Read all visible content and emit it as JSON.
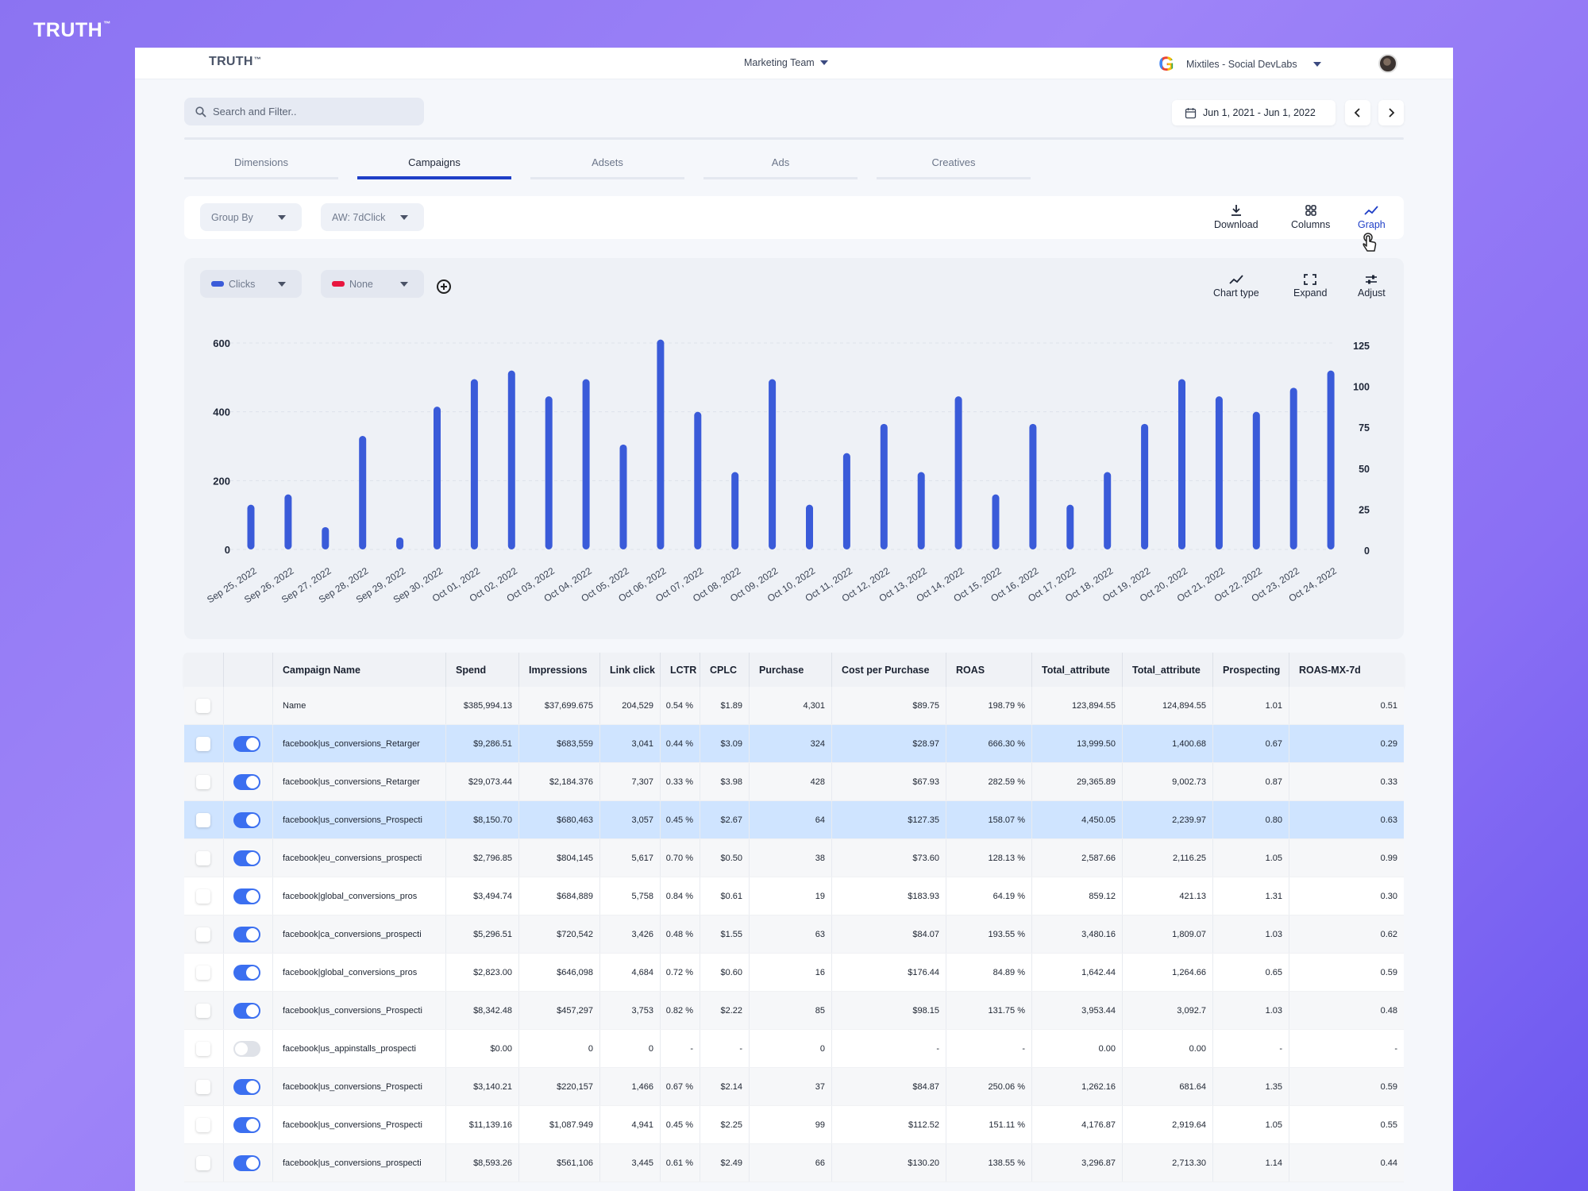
{
  "brand": {
    "name": "TRUTH",
    "tm": "™"
  },
  "header": {
    "team": "Marketing Team",
    "account": "Mixtiles - Social DevLabs"
  },
  "search": {
    "placeholder": "Search and Filter.."
  },
  "date_range": "Jun 1, 2021 - Jun 1, 2022",
  "tabs": [
    {
      "label": "Dimensions",
      "active": false
    },
    {
      "label": "Campaigns",
      "active": true
    },
    {
      "label": "Adsets",
      "active": false
    },
    {
      "label": "Ads",
      "active": false
    },
    {
      "label": "Creatives",
      "active": false
    }
  ],
  "toolbar": {
    "group_by": "Group By",
    "attribution": "AW: 7dClick",
    "download": "Download",
    "columns": "Columns",
    "graph": "Graph"
  },
  "chart_controls": {
    "metric1": "Clicks",
    "metric1_color": "#3a5bd9",
    "metric2": "None",
    "metric2_color": "#e8163f",
    "chart_type": "Chart type",
    "expand": "Expand",
    "adjust": "Adjust"
  },
  "chart_data": {
    "type": "bar",
    "title": "",
    "categories": [
      "Sep 25, 2022",
      "Sep 26, 2022",
      "Sep 27, 2022",
      "Sep 28, 2022",
      "Sep 29, 2022",
      "Sep 30, 2022",
      "Oct 01, 2022",
      "Oct 02, 2022",
      "Oct 03, 2022",
      "Oct 04, 2022",
      "Oct 05, 2022",
      "Oct 06, 2022",
      "Oct 07, 2022",
      "Oct 08, 2022",
      "Oct 09, 2022",
      "Oct 10, 2022",
      "Oct 11, 2022",
      "Oct 12, 2022",
      "Oct 13, 2022",
      "Oct 14, 2022",
      "Oct 15, 2022",
      "Oct 16, 2022",
      "Oct 17, 2022",
      "Oct 18, 2022",
      "Oct 19, 2022",
      "Oct 20, 2022",
      "Oct 21, 2022",
      "Oct 22, 2022",
      "Oct 23, 2022",
      "Oct 24, 2022"
    ],
    "series": [
      {
        "name": "Clicks",
        "values": [
          130,
          160,
          65,
          330,
          35,
          415,
          495,
          520,
          445,
          495,
          305,
          610,
          400,
          225,
          495,
          130,
          280,
          365,
          225,
          445,
          160,
          365,
          130,
          225,
          365,
          495,
          445,
          400,
          470,
          520
        ],
        "color": "#3a5bd9"
      }
    ],
    "ylim": [
      0,
      600
    ],
    "y_ticks": [
      "600",
      "400",
      "200",
      "0"
    ],
    "y2_ticks": [
      "125",
      "100",
      "75",
      "50",
      "25",
      "0"
    ],
    "grid": true
  },
  "table": {
    "columns": [
      "Campaign Name",
      "Spend",
      "Impressions",
      "Link click",
      "LCTR",
      "CPLC",
      "Purchase",
      "Cost per Purchase",
      "ROAS",
      "Total_attribute",
      "Total_attribute",
      "Prospecting",
      "ROAS-MX-7d"
    ],
    "rows": [
      {
        "toggle": null,
        "hl": false,
        "cells": [
          "Name",
          "$385,994.13",
          "$37,699.675",
          "204,529",
          "0.54 %",
          "$1.89",
          "4,301",
          "$89.75",
          "198.79 %",
          "123,894.55",
          "124,894.55",
          "1.01",
          "0.51"
        ]
      },
      {
        "toggle": true,
        "hl": true,
        "cells": [
          "facebook|us_conversions_Retarger",
          "$9,286.51",
          "$683,559",
          "3,041",
          "0.44 %",
          "$3.09",
          "324",
          "$28.97",
          "666.30 %",
          "13,999.50",
          "1,400.68",
          "0.67",
          "0.29"
        ]
      },
      {
        "toggle": true,
        "hl": false,
        "cells": [
          "facebook|us_conversions_Retarger",
          "$29,073.44",
          "$2,184.376",
          "7,307",
          "0.33 %",
          "$3.98",
          "428",
          "$67.93",
          "282.59 %",
          "29,365.89",
          "9,002.73",
          "0.87",
          "0.33"
        ]
      },
      {
        "toggle": true,
        "hl": true,
        "cells": [
          "facebook|us_conversions_Prospecti",
          "$8,150.70",
          "$680,463",
          "3,057",
          "0.45 %",
          "$2.67",
          "64",
          "$127.35",
          "158.07 %",
          "4,450.05",
          "2,239.97",
          "0.80",
          "0.63"
        ]
      },
      {
        "toggle": true,
        "hl": false,
        "cells": [
          "facebook|eu_conversions_prospecti",
          "$2,796.85",
          "$804,145",
          "5,617",
          "0.70 %",
          "$0.50",
          "38",
          "$73.60",
          "128.13 %",
          "2,587.66",
          "2,116.25",
          "1.05",
          "0.99"
        ]
      },
      {
        "toggle": true,
        "hl": false,
        "cells": [
          "facebook|global_conversions_pros",
          "$3,494.74",
          "$684,889",
          "5,758",
          "0.84 %",
          "$0.61",
          "19",
          "$183.93",
          "64.19 %",
          "859.12",
          "421.13",
          "1.31",
          "0.30"
        ]
      },
      {
        "toggle": true,
        "hl": false,
        "cells": [
          "facebook|ca_conversions_prospecti",
          "$5,296.51",
          "$720,542",
          "3,426",
          "0.48 %",
          "$1.55",
          "63",
          "$84.07",
          "193.55 %",
          "3,480.16",
          "1,809.07",
          "1.03",
          "0.62"
        ]
      },
      {
        "toggle": true,
        "hl": false,
        "cells": [
          "facebook|global_conversions_pros",
          "$2,823.00",
          "$646,098",
          "4,684",
          "0.72 %",
          "$0.60",
          "16",
          "$176.44",
          "84.89 %",
          "1,642.44",
          "1,264.66",
          "0.65",
          "0.59"
        ]
      },
      {
        "toggle": true,
        "hl": false,
        "cells": [
          "facebook|us_conversions_Prospecti",
          "$8,342.48",
          "$457,297",
          "3,753",
          "0.82 %",
          "$2.22",
          "85",
          "$98.15",
          "131.75 %",
          "3,953.44",
          "3,092.7",
          "1.03",
          "0.48"
        ]
      },
      {
        "toggle": false,
        "hl": false,
        "cells": [
          "facebook|us_appinstalls_prospecti",
          "$0.00",
          "0",
          "0",
          "-",
          "-",
          "0",
          "-",
          "-",
          "0.00",
          "0.00",
          "-",
          "-"
        ]
      },
      {
        "toggle": true,
        "hl": false,
        "cells": [
          "facebook|us_conversions_Prospecti",
          "$3,140.21",
          "$220,157",
          "1,466",
          "0.67 %",
          "$2.14",
          "37",
          "$84.87",
          "250.06 %",
          "1,262.16",
          "681.64",
          "1.35",
          "0.59"
        ]
      },
      {
        "toggle": true,
        "hl": false,
        "cells": [
          "facebook|us_conversions_Prospecti",
          "$11,139.16",
          "$1,087.949",
          "4,941",
          "0.45 %",
          "$2.25",
          "99",
          "$112.52",
          "151.11 %",
          "4,176.87",
          "2,919.64",
          "1.05",
          "0.55"
        ]
      },
      {
        "toggle": true,
        "hl": false,
        "cells": [
          "facebook|us_conversions_prospecti",
          "$8,593.26",
          "$561,106",
          "3,445",
          "0.61 %",
          "$2.49",
          "66",
          "$130.20",
          "138.55 %",
          "3,296.87",
          "2,713.30",
          "1.14",
          "0.44"
        ]
      }
    ]
  }
}
